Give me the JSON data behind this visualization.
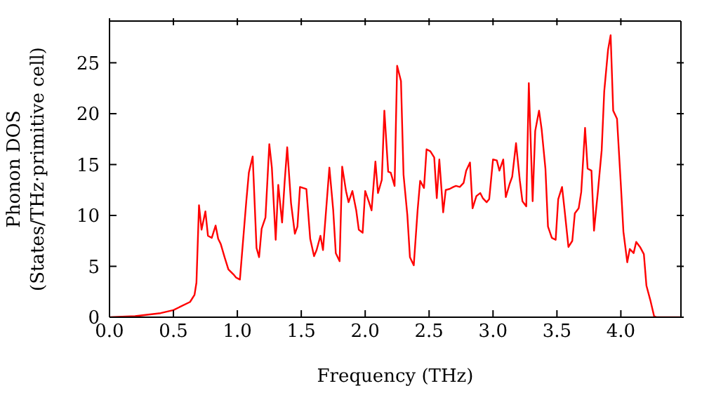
{
  "chart_data": {
    "type": "line",
    "xlabel": "Frequency (THz)",
    "ylabel": "Phonon DOS\n(States/THz·primitive cell)",
    "x": [
      0,
      0.2,
      0.4,
      0.5,
      0.63,
      0.665,
      0.68,
      0.7,
      0.72,
      0.75,
      0.77,
      0.8,
      0.83,
      0.85,
      0.87,
      0.9,
      0.93,
      0.97,
      0.99,
      1.02,
      1.07,
      1.09,
      1.12,
      1.15,
      1.17,
      1.19,
      1.22,
      1.25,
      1.27,
      1.3,
      1.32,
      1.35,
      1.37,
      1.39,
      1.42,
      1.45,
      1.47,
      1.49,
      1.54,
      1.57,
      1.6,
      1.62,
      1.65,
      1.67,
      1.72,
      1.75,
      1.77,
      1.8,
      1.82,
      1.85,
      1.87,
      1.9,
      1.93,
      1.95,
      1.98,
      2.0,
      2.03,
      2.05,
      2.08,
      2.1,
      2.13,
      2.15,
      2.18,
      2.2,
      2.23,
      2.25,
      2.28,
      2.3,
      2.33,
      2.35,
      2.38,
      2.41,
      2.43,
      2.46,
      2.48,
      2.51,
      2.54,
      2.56,
      2.58,
      2.61,
      2.63,
      2.66,
      2.69,
      2.71,
      2.74,
      2.77,
      2.79,
      2.82,
      2.84,
      2.87,
      2.9,
      2.92,
      2.95,
      2.97,
      3.0,
      3.03,
      3.05,
      3.08,
      3.1,
      3.13,
      3.15,
      3.18,
      3.21,
      3.23,
      3.26,
      3.28,
      3.31,
      3.33,
      3.36,
      3.38,
      3.41,
      3.43,
      3.46,
      3.49,
      3.51,
      3.54,
      3.56,
      3.59,
      3.62,
      3.64,
      3.67,
      3.69,
      3.72,
      3.74,
      3.77,
      3.79,
      3.82,
      3.85,
      3.87,
      3.9,
      3.92,
      3.94,
      3.97,
      4.0,
      4.02,
      4.05,
      4.07,
      4.1,
      4.12,
      4.15,
      4.18,
      4.2,
      4.23,
      4.26,
      4.28,
      4.47
    ],
    "series": [
      {
        "color": "#ff0000",
        "values": [
          0,
          0.1,
          0.4,
          0.7,
          1.5,
          2.2,
          3.4,
          11,
          8.6,
          10.4,
          8,
          7.8,
          9,
          7.7,
          7.2,
          5.9,
          4.7,
          4.2,
          3.9,
          3.7,
          11.4,
          14.2,
          15.8,
          6.8,
          5.9,
          8.7,
          9.8,
          17,
          14.7,
          7.6,
          13,
          9.3,
          13.3,
          16.7,
          11.2,
          8.2,
          8.9,
          12.8,
          12.6,
          7.7,
          6,
          6.6,
          8,
          6.6,
          14.7,
          10.5,
          6.3,
          5.5,
          14.8,
          12.4,
          11.3,
          12.4,
          10.5,
          8.6,
          8.3,
          12.4,
          11.3,
          10.5,
          15.3,
          12.2,
          13.5,
          20.3,
          14.3,
          14.2,
          12.9,
          24.7,
          23.2,
          14,
          10,
          5.9,
          5.1,
          10.5,
          13.4,
          12.7,
          16.5,
          16.3,
          15.7,
          11.7,
          15.5,
          10.3,
          12.5,
          12.6,
          12.8,
          12.9,
          12.8,
          13.2,
          14.4,
          15.2,
          10.7,
          11.9,
          12.2,
          11.7,
          11.3,
          11.6,
          15.5,
          15.4,
          14.4,
          15.5,
          11.8,
          13.1,
          13.8,
          17.1,
          13.4,
          11.4,
          10.9,
          23,
          11.4,
          18.3,
          20.3,
          18.5,
          14.6,
          8.9,
          7.8,
          7.6,
          11.6,
          12.8,
          10.5,
          6.9,
          7.5,
          10.2,
          10.7,
          12.3,
          18.6,
          14.6,
          14.4,
          8.5,
          12.3,
          16.4,
          22.2,
          26.3,
          27.7,
          20.3,
          19.5,
          13,
          8.4,
          5.4,
          6.7,
          6.3,
          7.4,
          6.9,
          6.2,
          3.1,
          1.7,
          0.1,
          0,
          0
        ]
      }
    ],
    "xlim": [
      0,
      4.47
    ],
    "ylim": [
      0,
      29.1
    ],
    "xticks": [
      {
        "value": 0,
        "label": "0.0"
      },
      {
        "value": 0.5,
        "label": "0.5"
      },
      {
        "value": 1,
        "label": "1.0"
      },
      {
        "value": 1.5,
        "label": "1.5"
      },
      {
        "value": 2,
        "label": "2.0"
      },
      {
        "value": 2.5,
        "label": "2.5"
      },
      {
        "value": 3,
        "label": "3.0"
      },
      {
        "value": 3.5,
        "label": "3.5"
      },
      {
        "value": 4,
        "label": "4.0"
      }
    ],
    "yticks": [
      0,
      5,
      10,
      15,
      20,
      25
    ],
    "legend": false,
    "marker": "none",
    "line_style": "solid"
  }
}
